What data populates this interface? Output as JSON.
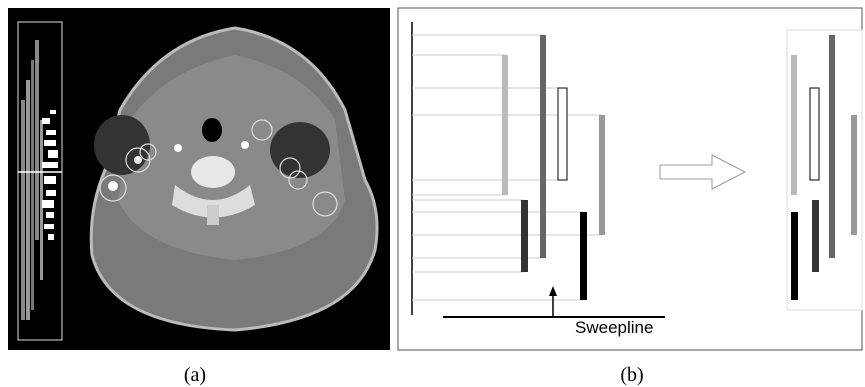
{
  "panels": [
    {
      "caption": "(a)"
    },
    {
      "caption": "(b)",
      "label": "Sweepline"
    }
  ]
}
